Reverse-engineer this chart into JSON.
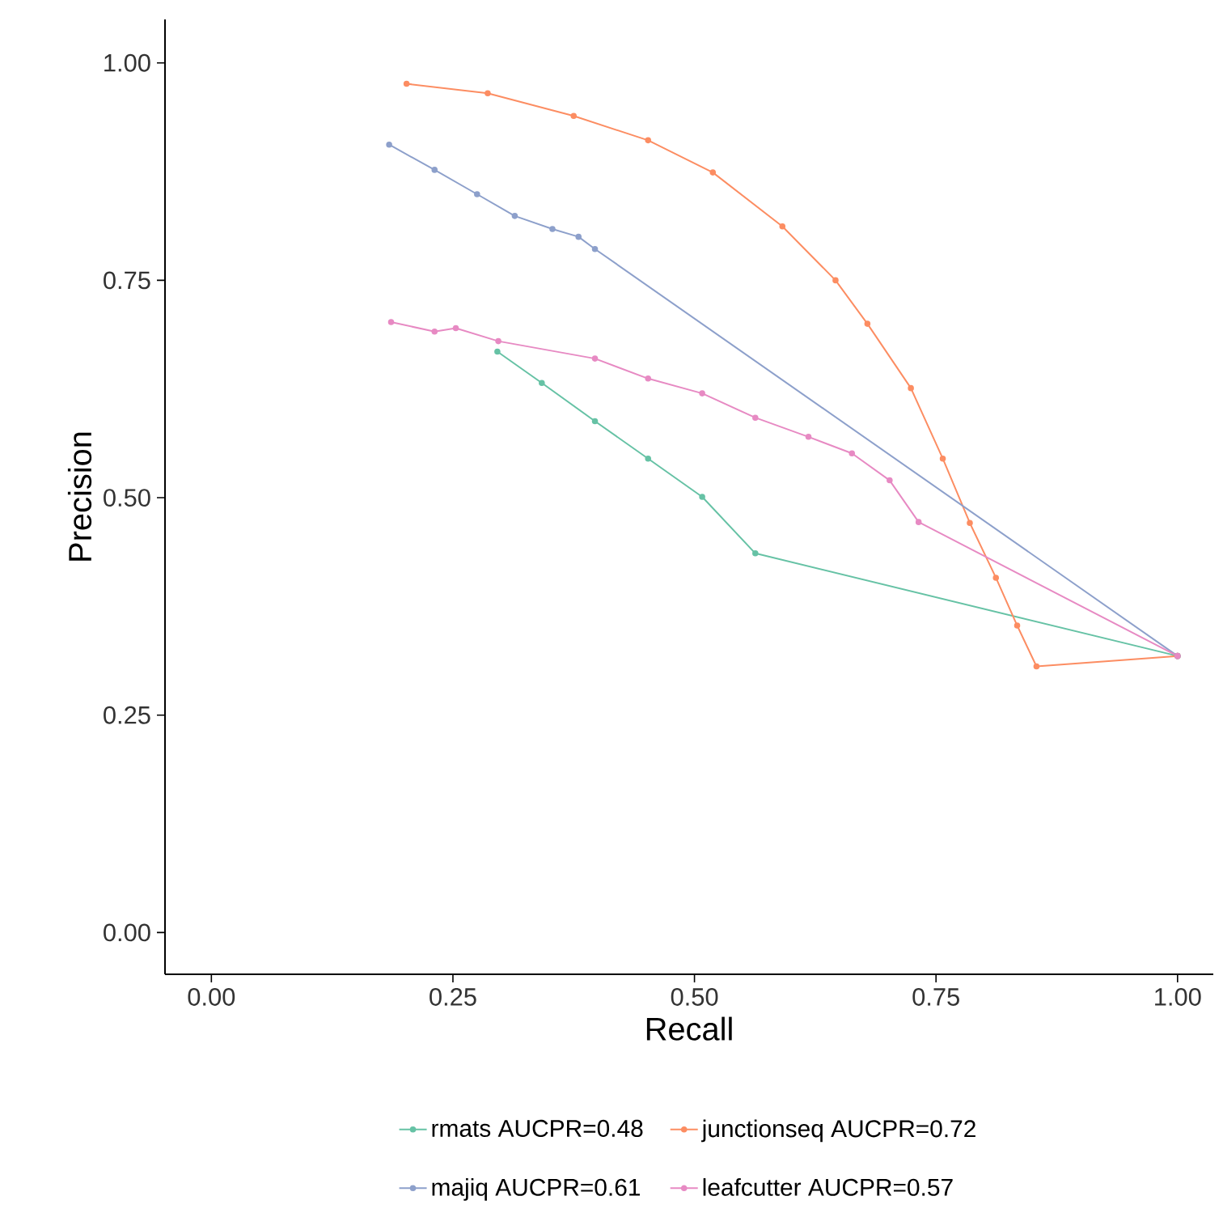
{
  "chart_data": {
    "type": "line",
    "xlabel": "Recall",
    "ylabel": "Precision",
    "xlim": [
      -0.048,
      1.037
    ],
    "ylim": [
      -0.048,
      1.05
    ],
    "xticks": [
      {
        "value": 0,
        "label": "0.00"
      },
      {
        "value": 0.25,
        "label": "0.25"
      },
      {
        "value": 0.5,
        "label": "0.50"
      },
      {
        "value": 0.75,
        "label": "0.75"
      },
      {
        "value": 1,
        "label": "1.00"
      }
    ],
    "yticks": [
      {
        "value": 0,
        "label": "0.00"
      },
      {
        "value": 0.25,
        "label": "0.25"
      },
      {
        "value": 0.5,
        "label": "0.50"
      },
      {
        "value": 0.75,
        "label": "0.75"
      },
      {
        "value": 1,
        "label": "1.00"
      }
    ],
    "grid": false,
    "legend": "bottom",
    "marker": "circle",
    "line_style": "solid",
    "series": [
      {
        "name": "rmats AUCPR=0.48",
        "color": "#66c2a5",
        "x": [
          0.296,
          0.342,
          0.397,
          0.452,
          0.508,
          0.563,
          1.0
        ],
        "values": [
          0.668,
          0.632,
          0.588,
          0.545,
          0.501,
          0.436,
          0.318
        ]
      },
      {
        "name": "junctionseq AUCPR=0.72",
        "color": "#fc8d62",
        "x": [
          0.202,
          0.286,
          0.375,
          0.452,
          0.519,
          0.591,
          0.646,
          0.679,
          0.724,
          0.757,
          0.785,
          0.812,
          0.834,
          0.854,
          1.0
        ],
        "values": [
          0.976,
          0.965,
          0.939,
          0.911,
          0.874,
          0.812,
          0.75,
          0.7,
          0.626,
          0.545,
          0.471,
          0.408,
          0.353,
          0.306,
          0.318
        ]
      },
      {
        "name": "majiq AUCPR=0.61",
        "color": "#8da0cb",
        "x": [
          0.184,
          0.231,
          0.275,
          0.314,
          0.353,
          0.38,
          0.397,
          1.0
        ],
        "values": [
          0.906,
          0.877,
          0.849,
          0.824,
          0.809,
          0.8,
          0.786,
          0.318
        ]
      },
      {
        "name": "leafcutter AUCPR=0.57",
        "color": "#e78ac3",
        "x": [
          0.186,
          0.231,
          0.253,
          0.297,
          0.397,
          0.452,
          0.508,
          0.563,
          0.618,
          0.663,
          0.702,
          0.732,
          1.0
        ],
        "values": [
          0.702,
          0.691,
          0.695,
          0.68,
          0.66,
          0.637,
          0.62,
          0.592,
          0.57,
          0.551,
          0.52,
          0.472,
          0.318
        ]
      }
    ]
  }
}
